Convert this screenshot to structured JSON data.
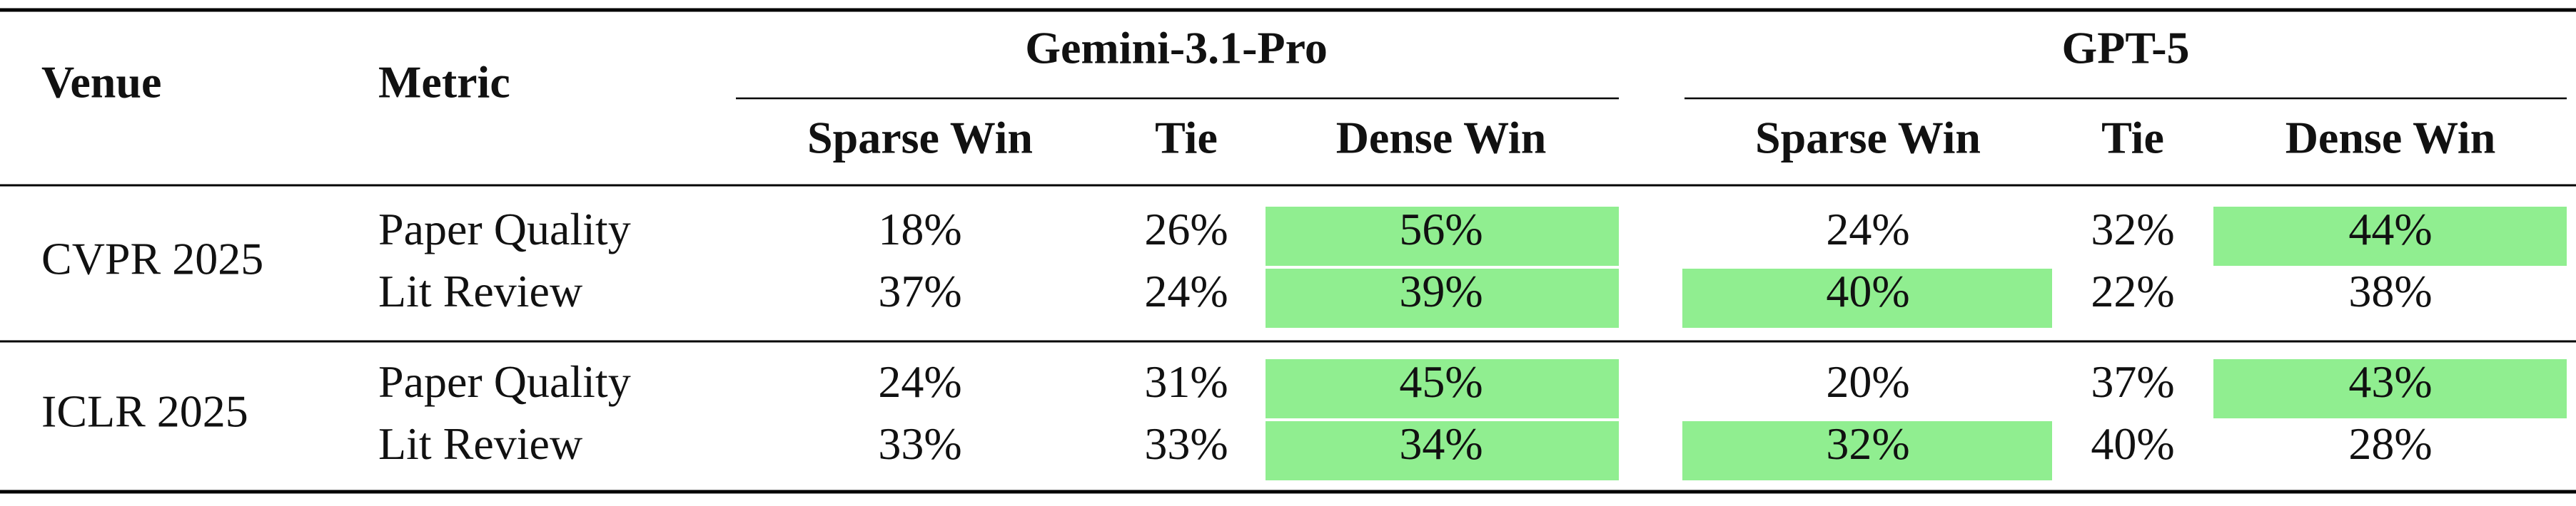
{
  "table": {
    "columns": [
      "Venue",
      "Metric"
    ],
    "groups": [
      {
        "name": "Gemini-3.1-Pro",
        "subcolumns": [
          "Sparse Win",
          "Tie",
          "Dense Win"
        ]
      },
      {
        "name": "GPT-5",
        "subcolumns": [
          "Sparse Win",
          "Tie",
          "Dense Win"
        ]
      }
    ],
    "highlight_color": "#90ee90",
    "sections": [
      {
        "venue": "CVPR 2025",
        "rows": [
          {
            "metric": "Paper Quality",
            "cells": [
              "18%",
              "26%",
              "56%",
              "24%",
              "32%",
              "44%"
            ],
            "highlighted": [
              2,
              5
            ]
          },
          {
            "metric": "Lit Review",
            "cells": [
              "37%",
              "24%",
              "39%",
              "40%",
              "22%",
              "38%"
            ],
            "highlighted": [
              2,
              3
            ]
          }
        ]
      },
      {
        "venue": "ICLR 2025",
        "rows": [
          {
            "metric": "Paper Quality",
            "cells": [
              "24%",
              "31%",
              "45%",
              "20%",
              "37%",
              "43%"
            ],
            "highlighted": [
              2,
              5
            ]
          },
          {
            "metric": "Lit Review",
            "cells": [
              "33%",
              "33%",
              "34%",
              "32%",
              "40%",
              "28%"
            ],
            "highlighted": [
              2,
              3
            ]
          }
        ]
      }
    ]
  }
}
